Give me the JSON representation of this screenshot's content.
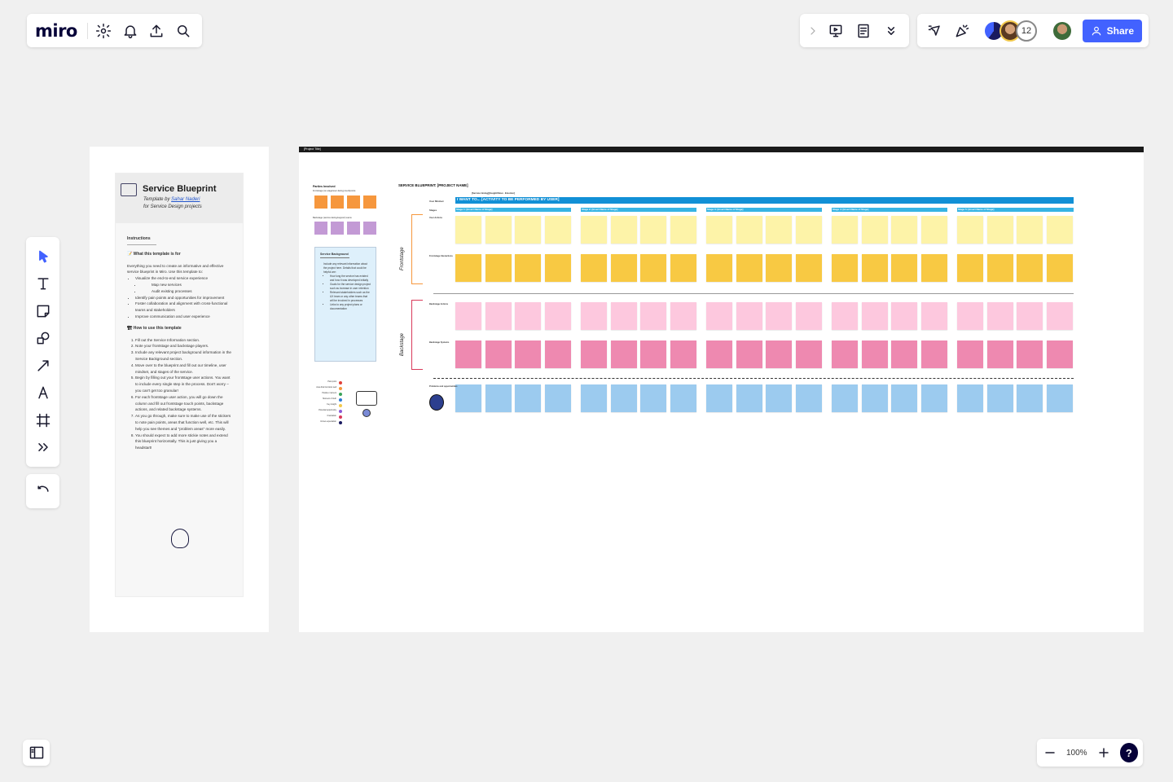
{
  "app": {
    "logo": "miro",
    "share_label": "Share",
    "collaborator_count": "12",
    "zoom_level": "100%",
    "help_label": "?"
  },
  "instructions": {
    "title": "Service Blueprint",
    "template_by": "Template by ",
    "author": "Sahar Naderi",
    "for_line": "for Service Design projects",
    "heading": "Instructions",
    "what_for_heading": "What this template is for",
    "what_for_intro": "Everything you need to create an informative and effective service blueprint in Miro. Use this template to:",
    "what_for_items": [
      "Visualize the end-to-end service experience",
      "Map new services",
      "Audit existing processes",
      "Identify pain points and opportunities for improvement",
      "Foster collaboration and alignment with cross-functional teams and stakeholders",
      "Improve communication and user experience"
    ],
    "how_heading": "How to use this template",
    "how_items": [
      "Fill out the Service Information section.",
      "Note your frontstage and backstage players.",
      "Include any relevant project background information in the Service Background section.",
      "Move over to the blueprint and fill out our timeline, user mindset, and stages of the service.",
      "Begin by filling out your frontstage user actions. You want to include every single step in the process. Don't worry – you can't get too granular!",
      "For each frontstage user action, you will go down the column and fill out frontstage touch points, backstage actions, and related backstage systems.",
      "As you go through, make sure to make use of the stickers to note pain points, areas that function well, etc. This will help you see themes and \"problem areas\" more easily.",
      "You should expect to add more stickie notes and extend this blueprint horizontally. This is just giving you a headstart!"
    ]
  },
  "board": {
    "frame_title": "[Project Title]",
    "blueprint_title": "SERVICE BLUEPRINT: [PROJECT NAME]",
    "parties_involved": "Parties Involved",
    "frontstage_players": "Frontstage (on-stage/user-facing) touchpoints",
    "backstage_players": "Backstage (service-facing/support) teams",
    "background_title": "Service Background",
    "background_intro": "Include any relevant information about the project here. Details that could be helpful are:",
    "background_items": [
      "How long the service has existed and how it was developed initially",
      "Goals for the service design project such as increase in user retention",
      "Relevant stakeholders such as the UX team or any other teams that will be involved in processes",
      "Links to any project plans or documentation"
    ],
    "user_mindset_label": "User Mindset",
    "stages_label": "Stages",
    "timeline_label": "[Service timing][Insight/Slow - Emotion]",
    "main_activity": "I WANT TO... [ACTIVITY TO BE PERFORMED BY USER]",
    "stages": [
      "Stage 1: [Insert Name of Stage]",
      "Stage 2: [Insert Name of Stage]",
      "Stage 3: [Insert Name of Stage]",
      "Stage 4: [Insert Name of Stage]",
      "Stage 5: [Insert Name of Stage]"
    ],
    "frontstage_label": "Frontstage",
    "backstage_label": "Backstage",
    "row_labels": [
      "User Actions",
      "Frontstage Interactions",
      "Backstage Actions",
      "Backstage Systems",
      "Problems and opportunities"
    ],
    "row_colors": [
      "#fdf3a8",
      "#f8c943",
      "#fdc8de",
      "#ee89b0",
      "#9ccbef"
    ],
    "legend_colors_front": "#f6973d",
    "legend_colors_back": "#c39ad5",
    "sticker_legend": [
      "Pain point",
      "Area that functions well",
      "Positive moment",
      "Moment of truth",
      "Key insight",
      "Potential opportunity",
      "Frustration",
      "Unmet expectation"
    ]
  }
}
